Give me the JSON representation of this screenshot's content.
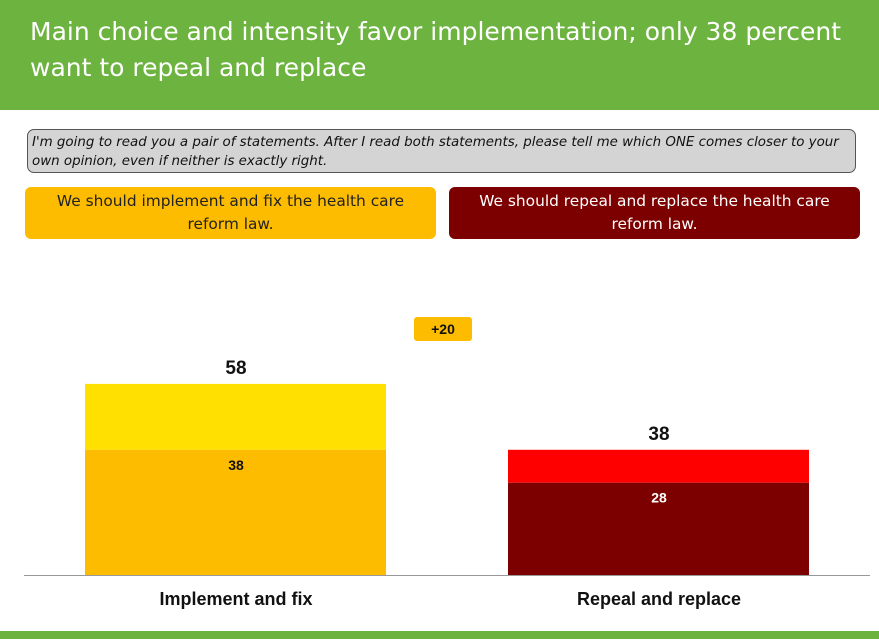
{
  "header": {
    "title": "Main choice and intensity favor implementation; only 38 percent want to repeal and replace"
  },
  "question": {
    "text": "I'm going to read you a pair of statements. After I read both statements, please tell me which ONE comes closer to your own opinion, even if neither is exactly right."
  },
  "statements": {
    "left": "We should implement and fix the health care reform law.",
    "right": "We should repeal and replace the health care reform law."
  },
  "difference_label": "+20",
  "colors": {
    "header_green": "#6db33f",
    "implement_total": "#ffe000",
    "implement_intense": "#fdbc00",
    "repeal_total": "#ff0000",
    "repeal_intense": "#7d0000"
  },
  "chart_data": {
    "type": "bar",
    "stacked": true,
    "categories": [
      "Implement and fix",
      "Repeal and replace"
    ],
    "totals": [
      58,
      38
    ],
    "intense": [
      38,
      28
    ],
    "ylim": [
      0,
      60
    ],
    "grid": false,
    "legend": "none"
  }
}
